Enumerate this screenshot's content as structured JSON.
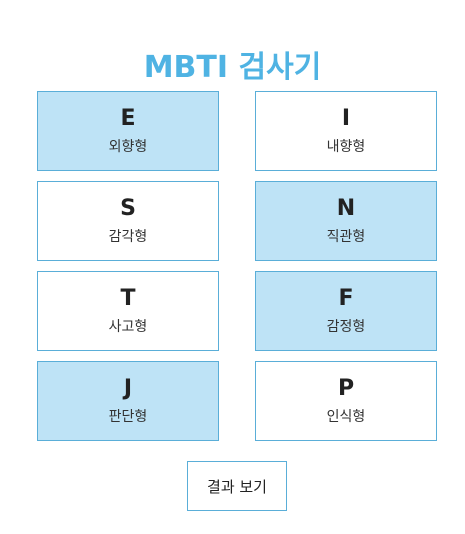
{
  "title": "MBTI 검사기",
  "colors": {
    "accent": "#4fb3e3",
    "selected_bg": "#bee3f6",
    "border": "#5aaed8"
  },
  "cards": [
    {
      "letter": "E",
      "label": "외향형",
      "selected": true
    },
    {
      "letter": "I",
      "label": "내향형",
      "selected": false
    },
    {
      "letter": "S",
      "label": "감각형",
      "selected": false
    },
    {
      "letter": "N",
      "label": "직관형",
      "selected": true
    },
    {
      "letter": "T",
      "label": "사고형",
      "selected": false
    },
    {
      "letter": "F",
      "label": "감정형",
      "selected": true
    },
    {
      "letter": "J",
      "label": "판단형",
      "selected": true
    },
    {
      "letter": "P",
      "label": "인식형",
      "selected": false
    }
  ],
  "result_button": {
    "label": "결과 보기"
  }
}
